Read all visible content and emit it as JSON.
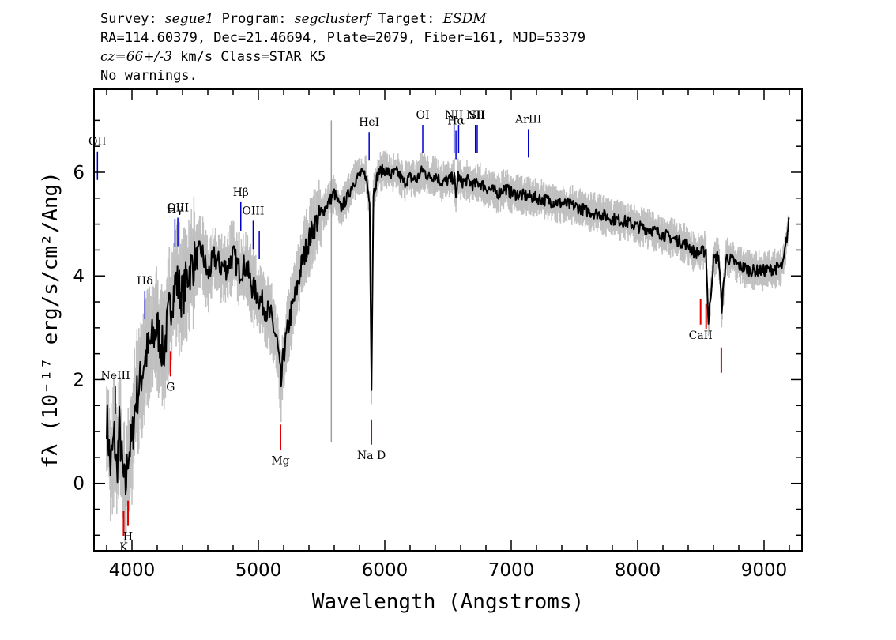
{
  "header": {
    "survey_label": "Survey:",
    "survey": "segue1",
    "program_label": "Program:",
    "program": "segclusterf",
    "target_label": "Target:",
    "target": "ESDM",
    "line2": "RA=114.60379, Dec=21.46694, Plate=2079, Fiber=161, MJD=53379",
    "cz": "cz=66+/-3",
    "cz_rest": " km/s Class=STAR K5",
    "warnings": "No warnings."
  },
  "chart_data": {
    "type": "line",
    "xlabel": "Wavelength (Angstroms)",
    "ylabel": "fλ (10⁻¹⁷ erg/s/cm²/Ang)",
    "xlim": [
      3700,
      9300
    ],
    "ylim": [
      -1.3,
      7.6
    ],
    "xticks": [
      4000,
      5000,
      6000,
      7000,
      8000,
      9000
    ],
    "yticks": [
      0,
      2,
      4,
      6
    ],
    "colors": {
      "flux": "#000000",
      "error_band": "#c0c0c0",
      "emission": "#0000cc",
      "absorption": "#e00000",
      "sky_line": "#a0a0a0"
    },
    "series": [
      {
        "role": "flux",
        "x": [
          3800,
          3830,
          3860,
          3880,
          3900,
          3930,
          3950,
          3970,
          4000,
          4030,
          4060,
          4100,
          4150,
          4200,
          4250,
          4300,
          4350,
          4400,
          4450,
          4500,
          4550,
          4600,
          4650,
          4700,
          4750,
          4800,
          4850,
          4900,
          4950,
          5000,
          5050,
          5100,
          5150,
          5180,
          5200,
          5250,
          5300,
          5350,
          5400,
          5450,
          5500,
          5550,
          5600,
          5650,
          5700,
          5750,
          5800,
          5850,
          5880,
          5895,
          5910,
          5950,
          6000,
          6050,
          6100,
          6150,
          6200,
          6250,
          6300,
          6350,
          6400,
          6450,
          6500,
          6550,
          6563,
          6580,
          6600,
          6650,
          6700,
          6750,
          6800,
          6850,
          6900,
          6950,
          7000,
          7100,
          7200,
          7300,
          7400,
          7500,
          7600,
          7700,
          7800,
          7900,
          8000,
          8100,
          8200,
          8300,
          8400,
          8450,
          8500,
          8540,
          8560,
          8600,
          8640,
          8665,
          8700,
          8750,
          8800,
          8900,
          9000,
          9100,
          9150,
          9200
        ],
        "y": [
          1.3,
          0.3,
          0.9,
          0.2,
          1.1,
          0.1,
          -0.1,
          0.6,
          0.8,
          1.6,
          1.9,
          2.4,
          2.7,
          3.0,
          2.5,
          3.4,
          3.9,
          3.6,
          4.1,
          4.3,
          4.5,
          4.0,
          4.35,
          4.2,
          4.15,
          4.4,
          4.1,
          4.2,
          3.8,
          3.6,
          3.4,
          3.2,
          2.7,
          1.9,
          2.5,
          3.2,
          3.7,
          4.3,
          4.7,
          5.0,
          5.2,
          5.4,
          5.6,
          5.3,
          5.5,
          5.8,
          5.95,
          5.95,
          5.4,
          1.9,
          5.6,
          6.0,
          6.05,
          5.95,
          6.0,
          5.8,
          5.9,
          5.85,
          6.05,
          5.9,
          5.95,
          5.8,
          5.85,
          5.9,
          5.5,
          5.95,
          5.8,
          5.85,
          5.75,
          5.8,
          5.7,
          5.65,
          5.6,
          5.7,
          5.6,
          5.55,
          5.5,
          5.45,
          5.4,
          5.35,
          5.25,
          5.2,
          5.1,
          5.05,
          4.95,
          4.9,
          4.8,
          4.7,
          4.6,
          4.45,
          4.45,
          4.5,
          3.1,
          4.3,
          4.4,
          3.4,
          4.35,
          4.3,
          4.2,
          4.1,
          4.1,
          4.15,
          4.2,
          5.1
        ]
      }
    ],
    "lines": [
      {
        "label": "OII",
        "x": 3727,
        "kind": "emission"
      },
      {
        "label": "NeIII",
        "x": 3869,
        "kind": "emission"
      },
      {
        "label": "Hδ",
        "x": 4102,
        "kind": "emission"
      },
      {
        "label": "Hγ",
        "x": 4340,
        "kind": "emission"
      },
      {
        "label": "OIII",
        "x": 4363,
        "kind": "emission"
      },
      {
        "label": "Hβ",
        "x": 4861,
        "kind": "emission"
      },
      {
        "label": "OIII",
        "x": 4959,
        "kind": "emission"
      },
      {
        "label": "",
        "x": 5007,
        "kind": "emission"
      },
      {
        "label": "HeI",
        "x": 5876,
        "kind": "emission"
      },
      {
        "label": "OI",
        "x": 6300,
        "kind": "emission"
      },
      {
        "label": "NII",
        "x": 6548,
        "kind": "emission"
      },
      {
        "label": "Hα",
        "x": 6563,
        "kind": "emission"
      },
      {
        "label": "",
        "x": 6584,
        "kind": "emission"
      },
      {
        "label": "NII",
        "x": 6717,
        "kind": "emission"
      },
      {
        "label": "SII",
        "x": 6731,
        "kind": "emission"
      },
      {
        "label": "ArIII",
        "x": 7136,
        "kind": "emission"
      },
      {
        "label": "K",
        "x": 3934,
        "kind": "absorption"
      },
      {
        "label": "H",
        "x": 3969,
        "kind": "absorption"
      },
      {
        "label": "G",
        "x": 4305,
        "kind": "absorption"
      },
      {
        "label": "Mg",
        "x": 5175,
        "kind": "absorption"
      },
      {
        "label": "Na D",
        "x": 5894,
        "kind": "absorption"
      },
      {
        "label": "CaII",
        "x": 8498,
        "kind": "absorption"
      },
      {
        "label": "",
        "x": 8542,
        "kind": "absorption"
      },
      {
        "label": "",
        "x": 8662,
        "kind": "absorption"
      }
    ]
  }
}
